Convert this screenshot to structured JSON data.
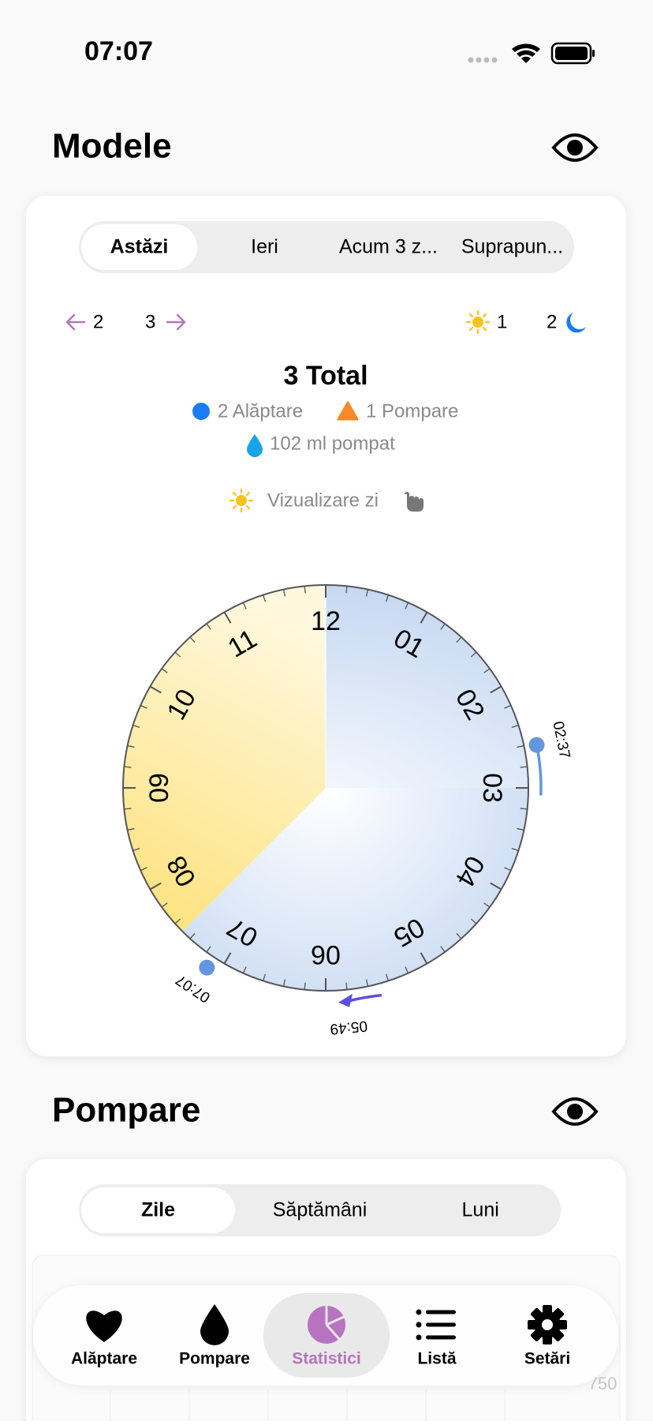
{
  "status_bar": {
    "time": "07:07"
  },
  "patterns": {
    "title": "Modele",
    "tabs": [
      "Astăzi",
      "Ieri",
      "Acum 3 z...",
      "Suprapun..."
    ],
    "selected_tab": 0,
    "nav": {
      "previous": "2",
      "next": "3",
      "day_count": "1",
      "night_count": "2"
    },
    "total": "3 Total",
    "legend": [
      "2 Alăptare",
      "1 Pompare"
    ],
    "pumped": "102 ml pompat",
    "view_toggle": "Vizualizare zi",
    "clock": {
      "hour_labels": [
        "12",
        "01",
        "02",
        "03",
        "04",
        "05",
        "06",
        "07",
        "08",
        "09",
        "10",
        "11"
      ],
      "events": [
        {
          "label": "02:37",
          "kind": "feeding"
        },
        {
          "label": "07:07",
          "kind": "feeding"
        },
        {
          "label": "05:49",
          "kind": "pumping"
        }
      ]
    }
  },
  "pumping": {
    "title": "Pompare",
    "tabs": [
      "Zile",
      "Săptămâni",
      "Luni"
    ],
    "selected_tab": 0,
    "axis_label": "750"
  },
  "tab_bar": {
    "items": [
      "Alăptare",
      "Pompare",
      "Statistici",
      "Listă",
      "Setări"
    ],
    "selected": 2
  }
}
